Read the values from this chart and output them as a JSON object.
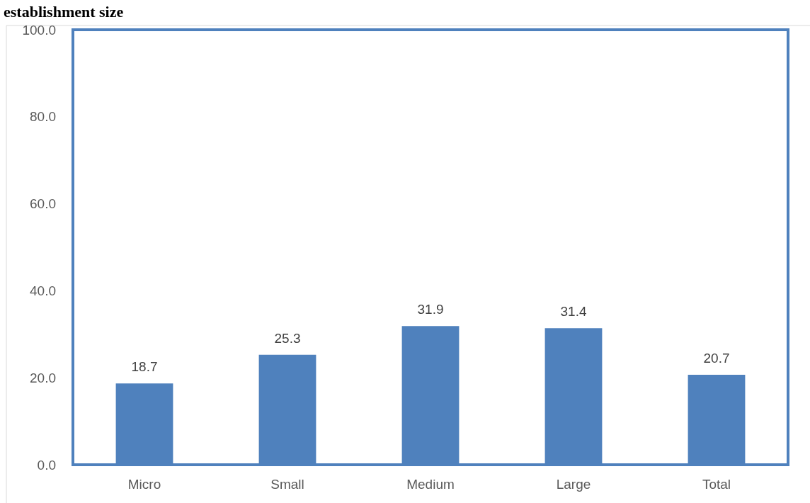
{
  "chart_data": {
    "type": "bar",
    "title": "establishment size",
    "categories": [
      "Micro",
      "Small",
      "Medium",
      "Large",
      "Total"
    ],
    "values": [
      18.7,
      25.3,
      31.9,
      31.4,
      20.7
    ],
    "color": "#4f81bd",
    "ylim": [
      0,
      100
    ],
    "yticks": [
      {
        "value": 0,
        "label": "0.0"
      },
      {
        "value": 20,
        "label": "20.0"
      },
      {
        "value": 40,
        "label": "40.0"
      },
      {
        "value": 60,
        "label": "60.0"
      },
      {
        "value": 80,
        "label": "80.0"
      },
      {
        "value": 100,
        "label": "100.0"
      }
    ],
    "grid": false,
    "data_labels": true
  }
}
